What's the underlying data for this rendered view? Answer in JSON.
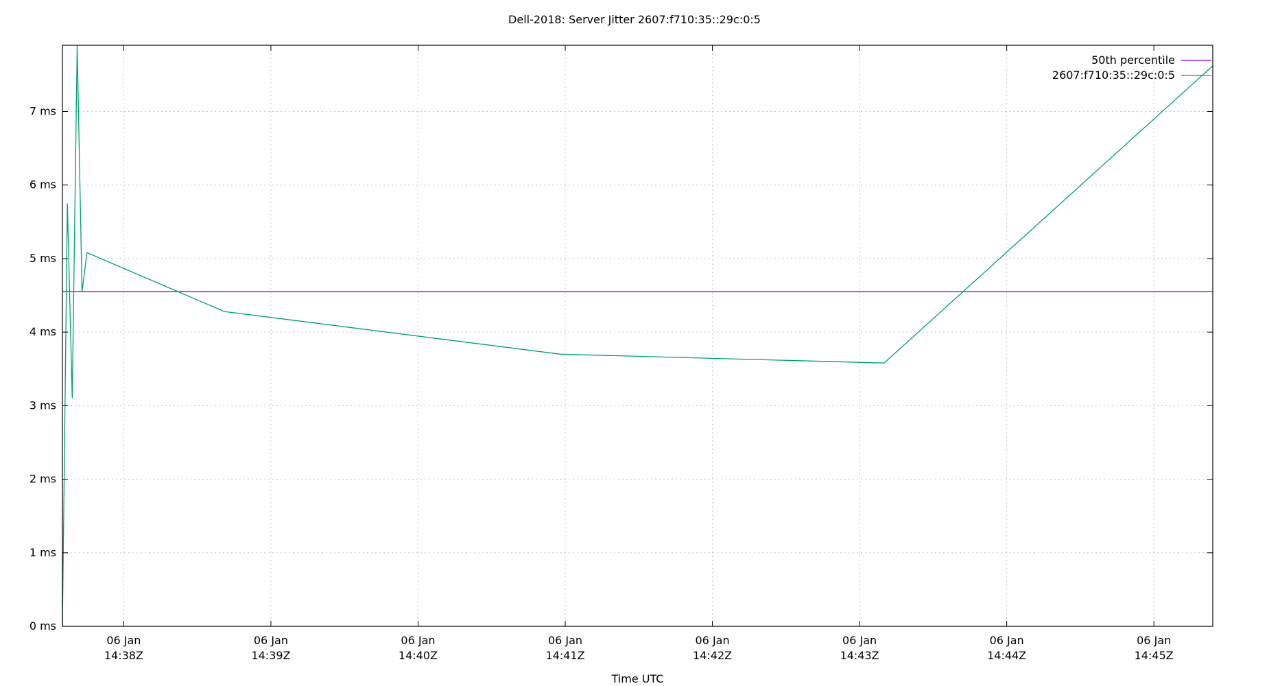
{
  "chart_data": {
    "type": "line",
    "title": "Dell-2018: Server Jitter 2607:f710:35::29c:0:5",
    "xlabel": "Time UTC",
    "ylabel": "",
    "y_unit": "ms",
    "ylim": [
      0,
      7.9
    ],
    "y_ticks": [
      {
        "value": 0,
        "label": "0 ms"
      },
      {
        "value": 1,
        "label": "1 ms"
      },
      {
        "value": 2,
        "label": "2 ms"
      },
      {
        "value": 3,
        "label": "3 ms"
      },
      {
        "value": 4,
        "label": "4 ms"
      },
      {
        "value": 5,
        "label": "5 ms"
      },
      {
        "value": 6,
        "label": "6 ms"
      },
      {
        "value": 7,
        "label": "7 ms"
      }
    ],
    "xlim": [
      "14:37:35",
      "14:45:24"
    ],
    "x_ticks": [
      {
        "value": "14:38:00",
        "line1": "06 Jan",
        "line2": "14:38Z"
      },
      {
        "value": "14:39:00",
        "line1": "06 Jan",
        "line2": "14:39Z"
      },
      {
        "value": "14:40:00",
        "line1": "06 Jan",
        "line2": "14:40Z"
      },
      {
        "value": "14:41:00",
        "line1": "06 Jan",
        "line2": "14:41Z"
      },
      {
        "value": "14:42:00",
        "line1": "06 Jan",
        "line2": "14:42Z"
      },
      {
        "value": "14:43:00",
        "line1": "06 Jan",
        "line2": "14:43Z"
      },
      {
        "value": "14:44:00",
        "line1": "06 Jan",
        "line2": "14:44Z"
      },
      {
        "value": "14:45:00",
        "line1": "06 Jan",
        "line2": "14:45Z"
      }
    ],
    "grid": true,
    "legend_position": "top-right",
    "series": [
      {
        "name": "50th percentile",
        "color": "#9400d3",
        "kind": "horizontal",
        "value": 4.55
      },
      {
        "name": "2607:f710:35::29c:0:5",
        "color": "#009e73",
        "kind": "line",
        "points": [
          [
            "14:37:35",
            0.0
          ],
          [
            "14:37:37",
            5.75
          ],
          [
            "14:37:39",
            3.1
          ],
          [
            "14:37:41",
            7.9
          ],
          [
            "14:37:43",
            4.55
          ],
          [
            "14:37:45",
            5.08
          ],
          [
            "14:38:41",
            4.28
          ],
          [
            "14:40:58",
            3.7
          ],
          [
            "14:43:10",
            3.58
          ],
          [
            "14:45:24",
            7.62
          ]
        ]
      }
    ]
  }
}
